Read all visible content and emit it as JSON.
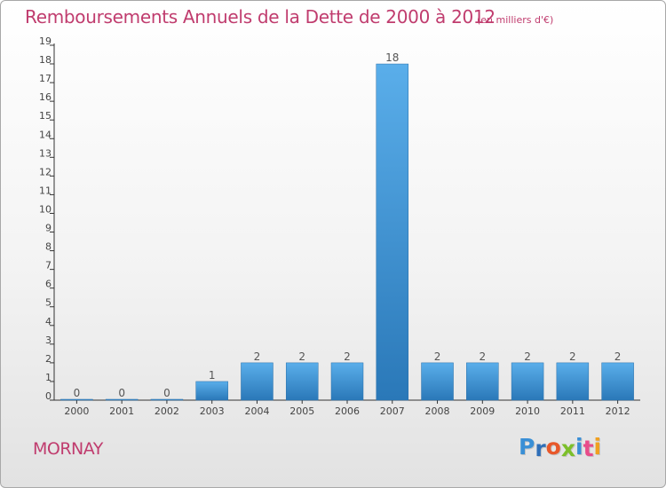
{
  "title": "Remboursements Annuels de la Dette de 2000 à 2012",
  "subtitle": "(en milliers d'€)",
  "commune": "MORNAY",
  "logo": {
    "letters": [
      "P",
      "r",
      "o",
      "x",
      "i",
      "t",
      "i"
    ],
    "colors": [
      "#3a8fd6",
      "#2f6fb8",
      "#e8582a",
      "#7cbf2a",
      "#3a8fd6",
      "#e84c8a",
      "#f0a020"
    ]
  },
  "colors": {
    "bar_light": "#5aaeea",
    "bar_dark": "#2a78b8",
    "title": "#c03c6e"
  },
  "chart_data": {
    "type": "bar",
    "title": "Remboursements Annuels de la Dette de 2000 à 2012",
    "subtitle": "(en milliers d'€)",
    "categories": [
      "2000",
      "2001",
      "2002",
      "2003",
      "2004",
      "2005",
      "2006",
      "2007",
      "2008",
      "2009",
      "2010",
      "2011",
      "2012"
    ],
    "values": [
      0,
      0,
      0,
      1,
      2,
      2,
      2,
      18,
      2,
      2,
      2,
      2,
      2
    ],
    "value_labels": [
      "0",
      "0",
      "0",
      "1",
      "2",
      "2",
      "2",
      "18",
      "2",
      "2",
      "2",
      "2",
      "2"
    ],
    "ylim": [
      0,
      19
    ],
    "yticks": [
      0,
      1,
      2,
      3,
      4,
      5,
      6,
      7,
      8,
      9,
      10,
      11,
      12,
      13,
      14,
      15,
      16,
      17,
      18,
      19
    ],
    "grid": false,
    "legend": "none"
  }
}
